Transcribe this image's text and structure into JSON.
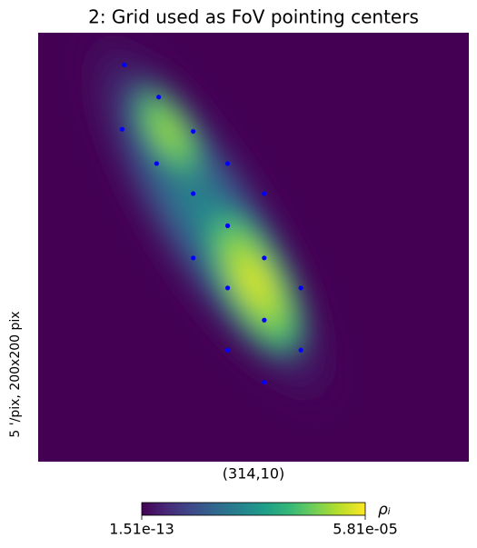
{
  "chart_data": {
    "type": "scatter",
    "title": "2: Grid used as FoV pointing centers",
    "xlabel": "(314,10)",
    "ylabel": "5 '/pix,   200x200 pix",
    "xlim": [
      0,
      200
    ],
    "ylim": [
      200,
      0
    ],
    "color": "#0000ff",
    "x": [
      40,
      56,
      39,
      72,
      55,
      88,
      72,
      105,
      88,
      72,
      105,
      88,
      122,
      105,
      88,
      122,
      105
    ],
    "y": [
      15,
      30,
      45,
      46,
      61,
      61,
      75,
      75,
      90,
      105,
      105,
      119,
      119,
      134,
      148,
      148,
      163
    ],
    "colorbar": {
      "label": "ρᵢ",
      "lim": [
        1.51e-13,
        5.81e-05
      ],
      "ticks": [
        1.51e-13,
        {
          "value": 5.81e-05,
          "label": "5.81e-05"
        }
      ]
    }
  }
}
